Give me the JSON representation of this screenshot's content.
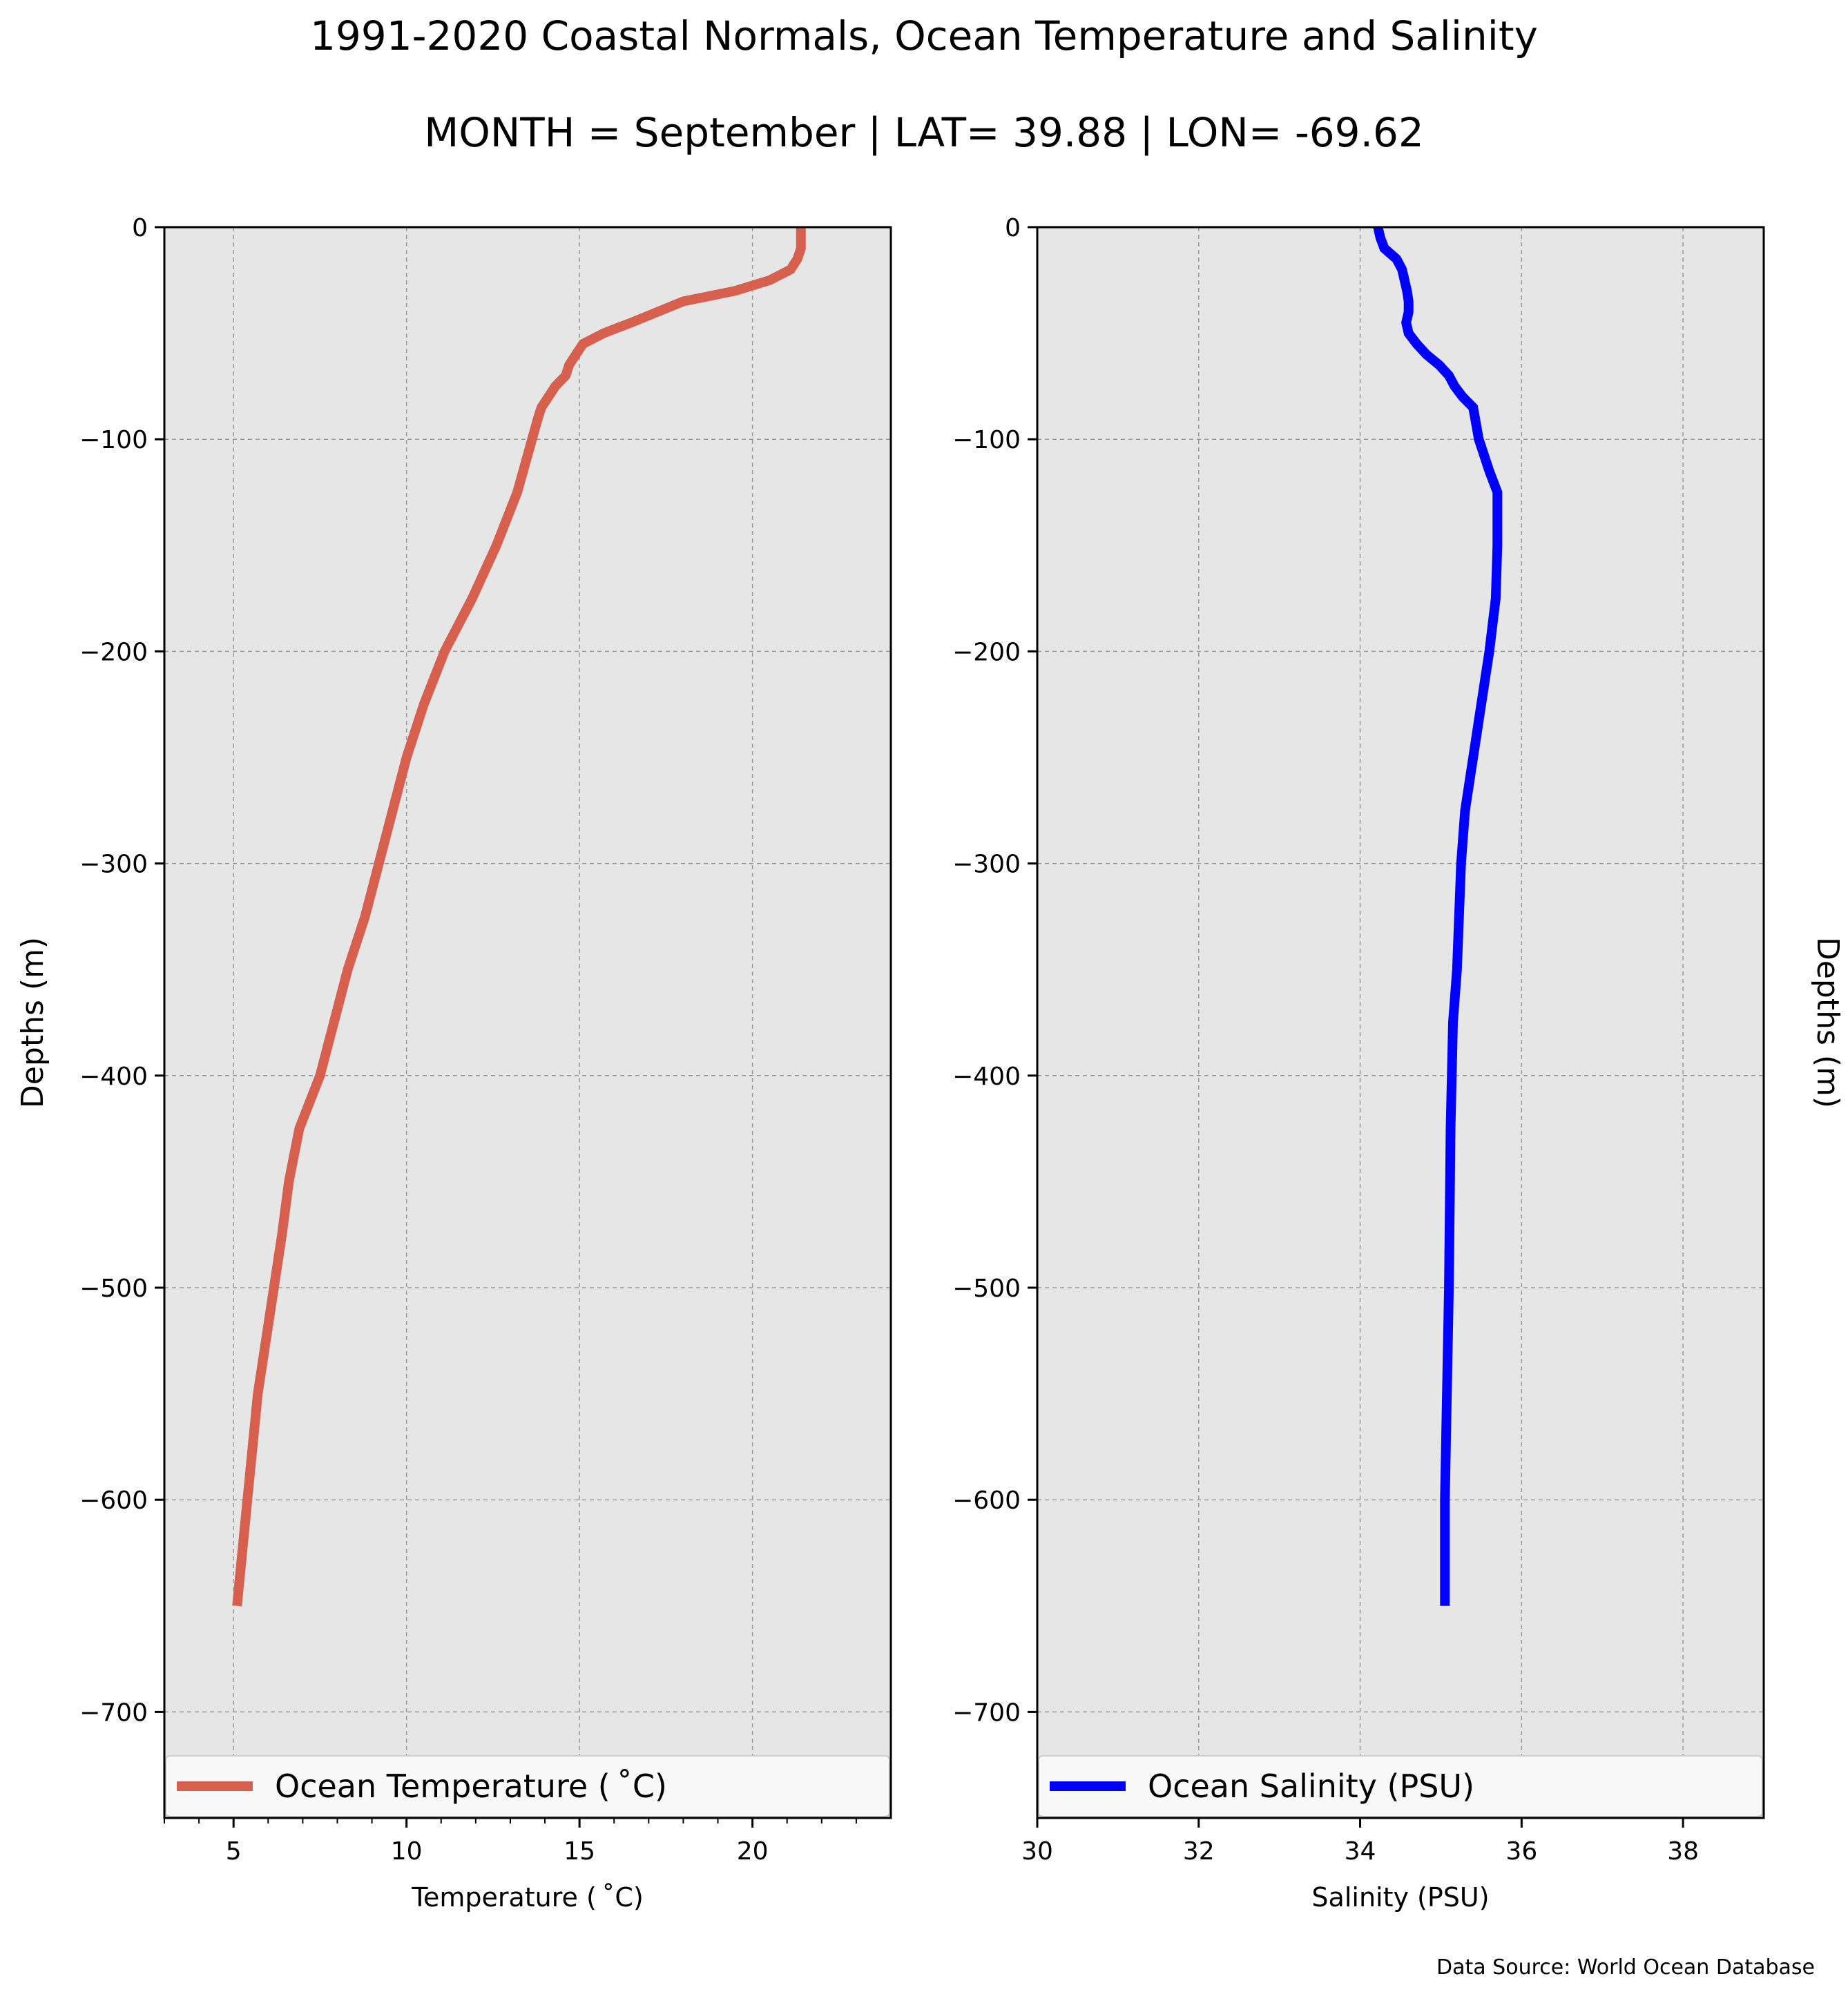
{
  "title": "1991-2020 Coastal Normals, Ocean Temperature and Salinity",
  "subtitle": "MONTH = September | LAT= 39.88 | LON= -69.62",
  "source_note": "Data Source: World Ocean Database",
  "colors": {
    "panel_bg": "#e6e6e6",
    "temperature_line": "#d6604d",
    "salinity_line": "#0000ff",
    "grid": "#9a9a9a"
  },
  "chart_data": [
    {
      "type": "line",
      "title": "",
      "xlabel": "Temperature ($^\\circ$C)",
      "xlabel_display": "Temperature ( ˚C)",
      "ylabel": "Depths (m)",
      "ylabel_side": "left",
      "xlim": [
        3,
        24
      ],
      "ylim": [
        -750,
        0
      ],
      "xticks": [
        5,
        10,
        15,
        20
      ],
      "xtick_labels": [
        "5",
        "10",
        "15",
        "20"
      ],
      "minor_xticks": [
        3,
        4,
        6,
        7,
        8,
        9,
        11,
        12,
        13,
        14,
        16,
        17,
        18,
        19,
        21,
        22,
        23
      ],
      "yticks": [
        0,
        -100,
        -200,
        -300,
        -400,
        -500,
        -600,
        -700
      ],
      "ytick_labels": [
        "0",
        "−100",
        "−200",
        "−300",
        "−400",
        "−500",
        "−600",
        "−700"
      ],
      "grid": true,
      "legend": {
        "placement": "bottom",
        "entries": [
          "Ocean Temperature ( ˚C)"
        ]
      },
      "series": [
        {
          "name": "Ocean Temperature ( ˚C)",
          "color": "#d6604d",
          "x": [
            21.4,
            21.4,
            21.4,
            21.3,
            21.1,
            20.5,
            19.5,
            18.0,
            16.5,
            15.7,
            15.1,
            14.9,
            14.7,
            14.6,
            14.3,
            14.1,
            13.9,
            13.8,
            13.2,
            12.6,
            11.9,
            11.1,
            10.5,
            10.0,
            9.6,
            9.2,
            8.8,
            8.3,
            7.5,
            6.9,
            6.6,
            6.4,
            5.7,
            5.4,
            5.1
          ],
          "y": [
            0,
            -5,
            -10,
            -15,
            -20,
            -25,
            -30,
            -35,
            -45,
            -50,
            -55,
            -60,
            -65,
            -70,
            -75,
            -80,
            -85,
            -90,
            -125,
            -150,
            -175,
            -200,
            -225,
            -250,
            -275,
            -300,
            -325,
            -350,
            -400,
            -425,
            -450,
            -475,
            -550,
            -600,
            -650
          ]
        }
      ]
    },
    {
      "type": "line",
      "title": "",
      "xlabel": "Salinity (PSU)",
      "ylabel": "Depths (m)",
      "ylabel_side": "right",
      "xlim": [
        30,
        39
      ],
      "ylim": [
        -750,
        0
      ],
      "xticks": [
        30,
        32,
        34,
        36,
        38
      ],
      "xtick_labels": [
        "30",
        "32",
        "34",
        "36",
        "38"
      ],
      "yticks": [
        0,
        -100,
        -200,
        -300,
        -400,
        -500,
        -600,
        -700
      ],
      "ytick_labels": [
        "0",
        "−100",
        "−200",
        "−300",
        "−400",
        "−500",
        "−600",
        "−700"
      ],
      "grid": true,
      "legend": {
        "placement": "bottom",
        "entries": [
          "Ocean Salinity (PSU)"
        ]
      },
      "series": [
        {
          "name": "Ocean Salinity (PSU)",
          "color": "#0000ff",
          "x": [
            34.22,
            34.25,
            34.3,
            34.45,
            34.52,
            34.55,
            34.58,
            34.6,
            34.6,
            34.57,
            34.6,
            34.7,
            34.82,
            34.98,
            35.1,
            35.17,
            35.27,
            35.4,
            35.47,
            35.6,
            35.7,
            35.7,
            35.68,
            35.6,
            35.5,
            35.4,
            35.3,
            35.25,
            35.2,
            35.15,
            35.12,
            35.1,
            35.05,
            35.05
          ],
          "y": [
            0,
            -5,
            -10,
            -15,
            -20,
            -25,
            -30,
            -35,
            -40,
            -45,
            -50,
            -55,
            -60,
            -65,
            -70,
            -75,
            -80,
            -85,
            -100,
            -115,
            -125,
            -150,
            -175,
            -200,
            -225,
            -250,
            -275,
            -300,
            -350,
            -375,
            -425,
            -500,
            -600,
            -650
          ]
        }
      ]
    }
  ]
}
